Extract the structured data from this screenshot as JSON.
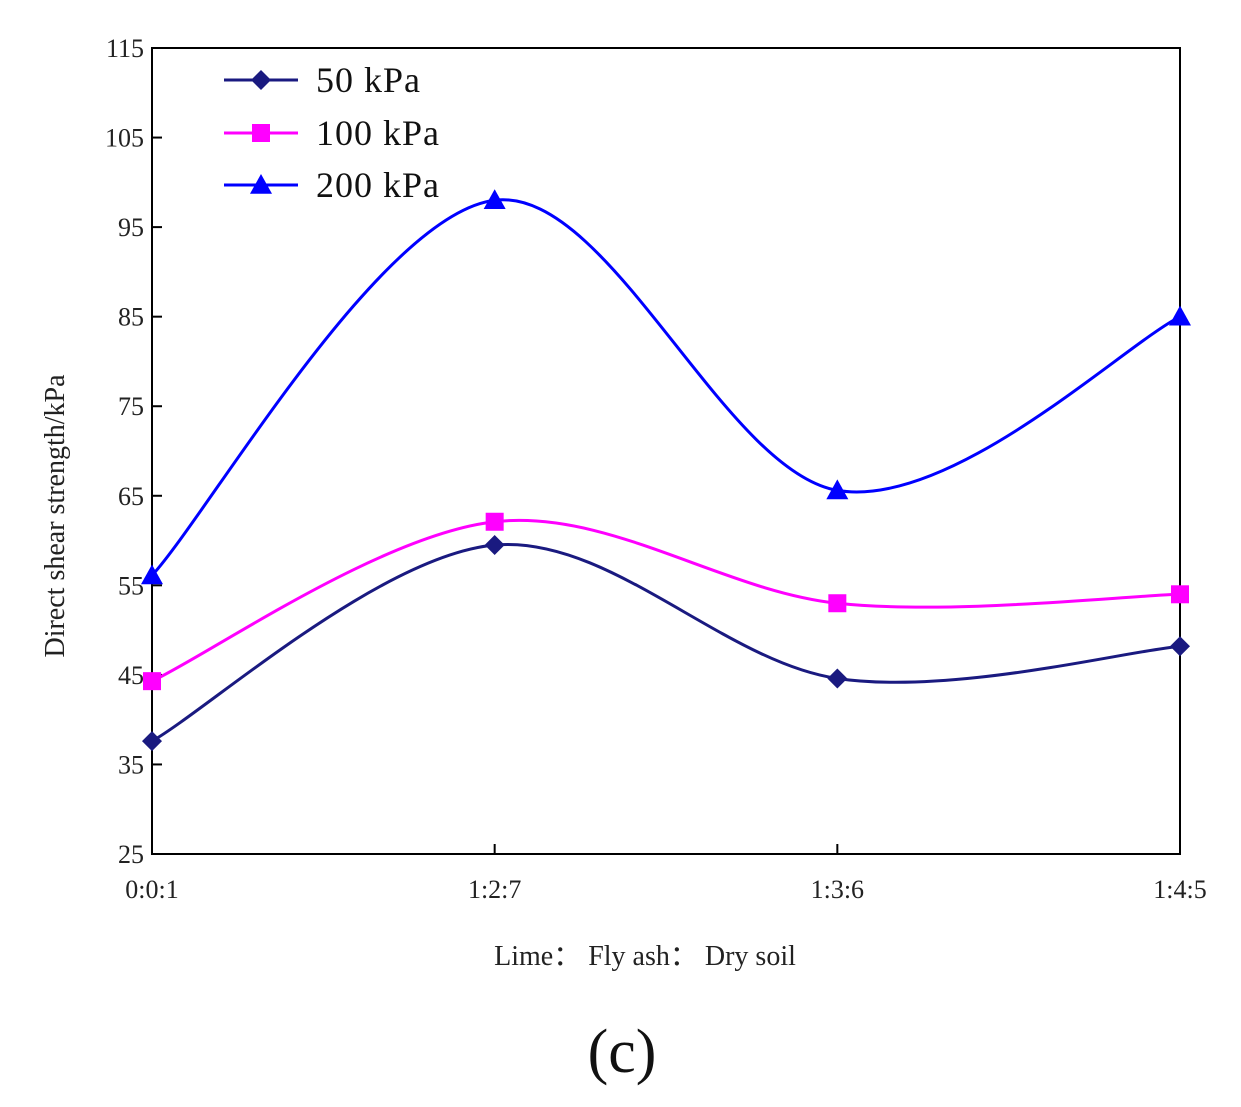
{
  "chart_data": {
    "type": "line",
    "title": "",
    "caption": "(c)",
    "xlabel": "Lime： Fly ash： Dry soil",
    "ylabel": "Direct shear strength/kPa",
    "categories": [
      "0:0:1",
      "1:2:7",
      "1:3:6",
      "1:4:5"
    ],
    "ylim": [
      25,
      115
    ],
    "yticks": [
      25,
      35,
      45,
      55,
      65,
      75,
      85,
      95,
      105,
      115
    ],
    "grid": false,
    "legend_position": "top-left",
    "series": [
      {
        "name": "50 kPa",
        "marker": "diamond",
        "color": "#1a1a80",
        "values": [
          37.6,
          59.5,
          44.6,
          48.2
        ]
      },
      {
        "name": "100 kPa",
        "marker": "square",
        "color": "#ff00ff",
        "values": [
          44.3,
          62.1,
          53.0,
          54.0
        ]
      },
      {
        "name": "200 kPa",
        "marker": "triangle",
        "color": "#0000ff",
        "values": [
          56.1,
          98.0,
          65.6,
          85.0
        ]
      }
    ]
  }
}
